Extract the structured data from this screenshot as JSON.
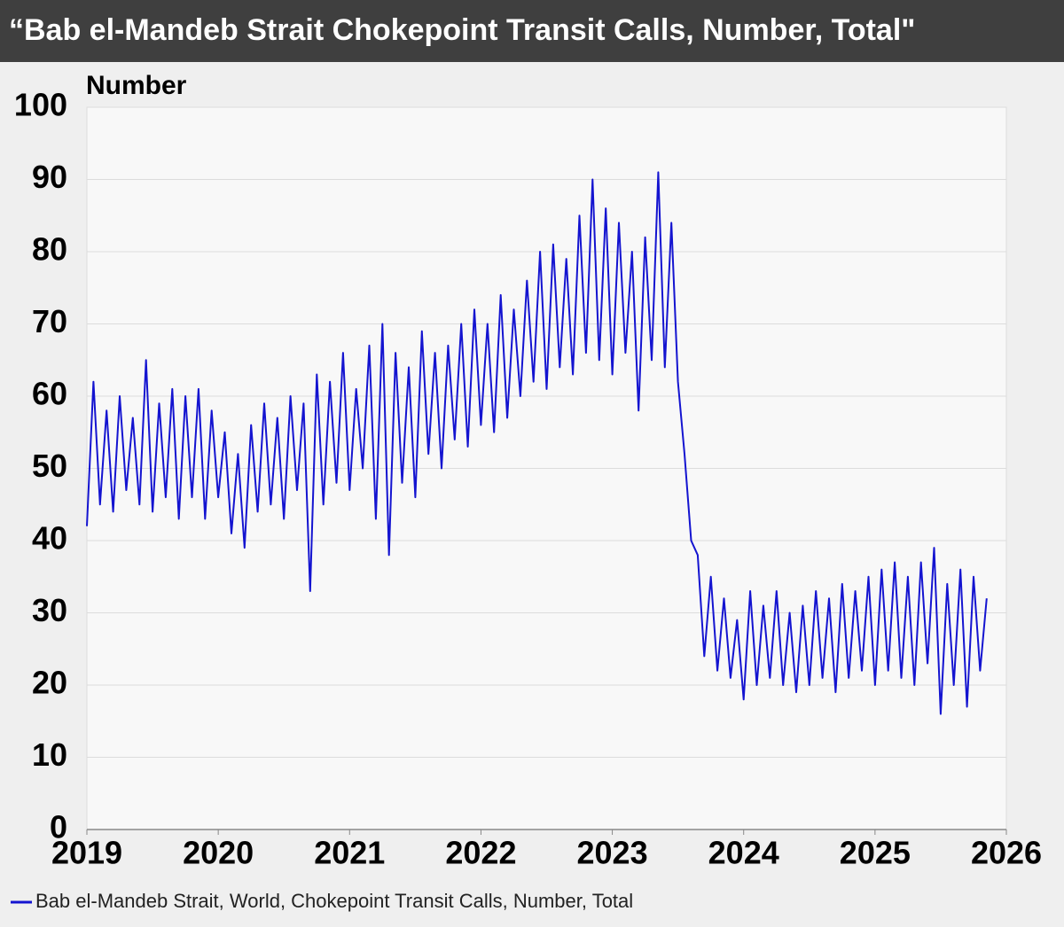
{
  "chart_data": {
    "type": "line",
    "title": "“Bab el-Mandeb Strait Chokepoint Transit Calls, Number, Total\"",
    "y_label": "Number",
    "x": [
      2019,
      2019.05,
      2019.1,
      2019.15,
      2019.2,
      2019.25,
      2019.3,
      2019.35,
      2019.4,
      2019.45,
      2019.5,
      2019.55,
      2019.6,
      2019.65,
      2019.7,
      2019.75,
      2019.8,
      2019.85,
      2019.9,
      2019.95,
      2020,
      2020.05,
      2020.1,
      2020.15,
      2020.2,
      2020.25,
      2020.3,
      2020.35,
      2020.4,
      2020.45,
      2020.5,
      2020.55,
      2020.6,
      2020.65,
      2020.7,
      2020.75,
      2020.8,
      2020.85,
      2020.9,
      2020.95,
      2021,
      2021.05,
      2021.1,
      2021.15,
      2021.2,
      2021.25,
      2021.3,
      2021.35,
      2021.4,
      2021.45,
      2021.5,
      2021.55,
      2021.6,
      2021.65,
      2021.7,
      2021.75,
      2021.8,
      2021.85,
      2021.9,
      2021.95,
      2022,
      2022.05,
      2022.1,
      2022.15,
      2022.2,
      2022.25,
      2022.3,
      2022.35,
      2022.4,
      2022.45,
      2022.5,
      2022.55,
      2022.6,
      2022.65,
      2022.7,
      2022.75,
      2022.8,
      2022.85,
      2022.9,
      2022.95,
      2023,
      2023.05,
      2023.1,
      2023.15,
      2023.2,
      2023.25,
      2023.3,
      2023.35,
      2023.4,
      2023.45,
      2023.5,
      2023.55,
      2023.6,
      2023.65,
      2023.7,
      2023.75,
      2023.8,
      2023.85,
      2023.9,
      2023.95,
      2024,
      2024.05,
      2024.1,
      2024.15,
      2024.2,
      2024.25,
      2024.3,
      2024.35,
      2024.4,
      2024.45,
      2024.5,
      2024.55,
      2024.6,
      2024.65,
      2024.7,
      2024.75,
      2024.8,
      2024.85,
      2024.9,
      2024.95,
      2025,
      2025.05,
      2025.1,
      2025.15,
      2025.2,
      2025.25,
      2025.3,
      2025.35,
      2025.4,
      2025.45,
      2025.5,
      2025.55,
      2025.6,
      2025.65,
      2025.7,
      2025.75,
      2025.8,
      2025.85
    ],
    "series": [
      {
        "name": "Bab el-Mandeb Strait, World, Chokepoint Transit Calls, Number, Total",
        "color": "#1414d0",
        "values": [
          42,
          62,
          45,
          58,
          44,
          60,
          47,
          57,
          45,
          65,
          44,
          59,
          46,
          61,
          43,
          60,
          46,
          61,
          43,
          58,
          46,
          55,
          41,
          52,
          39,
          56,
          44,
          59,
          45,
          57,
          43,
          60,
          47,
          59,
          33,
          63,
          45,
          62,
          48,
          66,
          47,
          61,
          50,
          67,
          43,
          70,
          38,
          66,
          48,
          64,
          46,
          69,
          52,
          66,
          50,
          67,
          54,
          70,
          53,
          72,
          56,
          70,
          55,
          74,
          57,
          72,
          60,
          76,
          62,
          80,
          61,
          81,
          64,
          79,
          63,
          85,
          66,
          90,
          65,
          86,
          63,
          84,
          66,
          80,
          58,
          82,
          65,
          91,
          64,
          84,
          62,
          52,
          40,
          38,
          24,
          35,
          22,
          32,
          21,
          29,
          18,
          33,
          20,
          31,
          21,
          33,
          20,
          30,
          19,
          31,
          20,
          33,
          21,
          32,
          19,
          34,
          21,
          33,
          22,
          35,
          20,
          36,
          22,
          37,
          21,
          35,
          20,
          37,
          23,
          39,
          16,
          34,
          20,
          36,
          17,
          35,
          22,
          32
        ]
      }
    ],
    "xlim": [
      2019,
      2026
    ],
    "xticks": [
      2019,
      2020,
      2021,
      2022,
      2023,
      2024,
      2025,
      2026
    ],
    "ylim": [
      0,
      100
    ],
    "yticks": [
      0,
      10,
      20,
      30,
      40,
      50,
      60,
      70,
      80,
      90,
      100
    ],
    "grid": true
  }
}
